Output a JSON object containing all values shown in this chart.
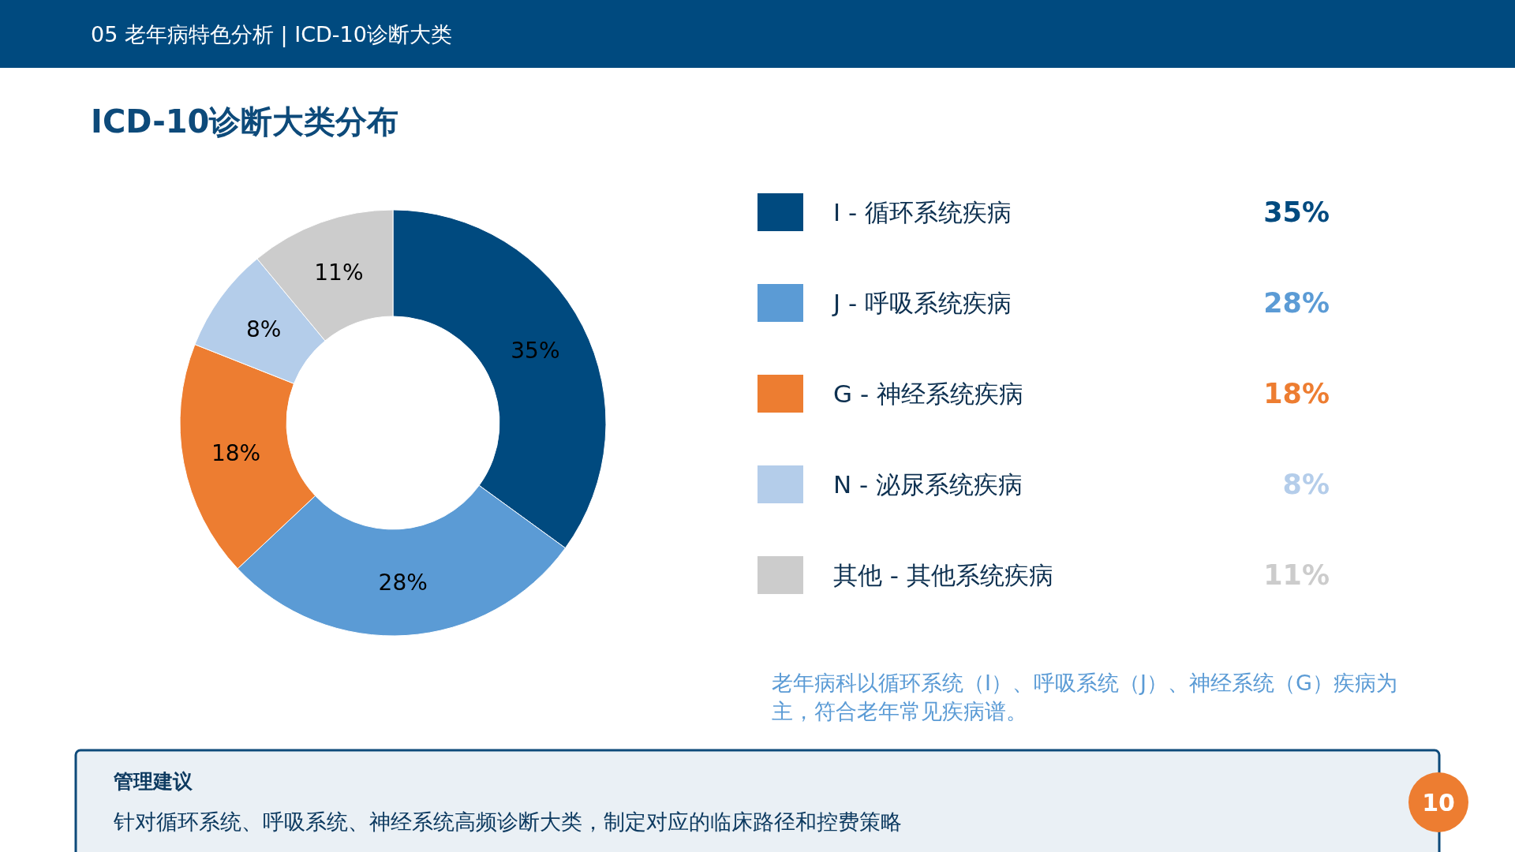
{
  "chart_data": {
    "type": "donut",
    "subtitle": "05  老年病特色分析 | ICD-10诊断大类",
    "title": "ICD-10诊断大类分布",
    "categories": [
      "I - 循环系统疾病",
      "J - 呼吸系统疾病",
      "G - 神经系统疾病",
      "N - 泌尿系统疾病",
      "其他 - 其他系统疾病"
    ],
    "values": [
      35,
      28,
      18,
      8,
      11
    ],
    "colors": [
      "#004a7f",
      "#5b9bd5",
      "#ed7d31",
      "#b4cdea",
      "#cccccc"
    ],
    "value_labels": [
      "35%",
      "28%",
      "18%",
      "8%",
      "11%"
    ],
    "legend": "right",
    "annotations": [
      "老年病科以循环系统（I）、呼吸系统（J）、神经系统（G）疾病为主，符合老年常见疾病谱。",
      "管理建议",
      "针对循环系统、呼吸系统、神经系统高频诊断大类，制定对应的临床路径和控费策略",
      "10"
    ]
  }
}
